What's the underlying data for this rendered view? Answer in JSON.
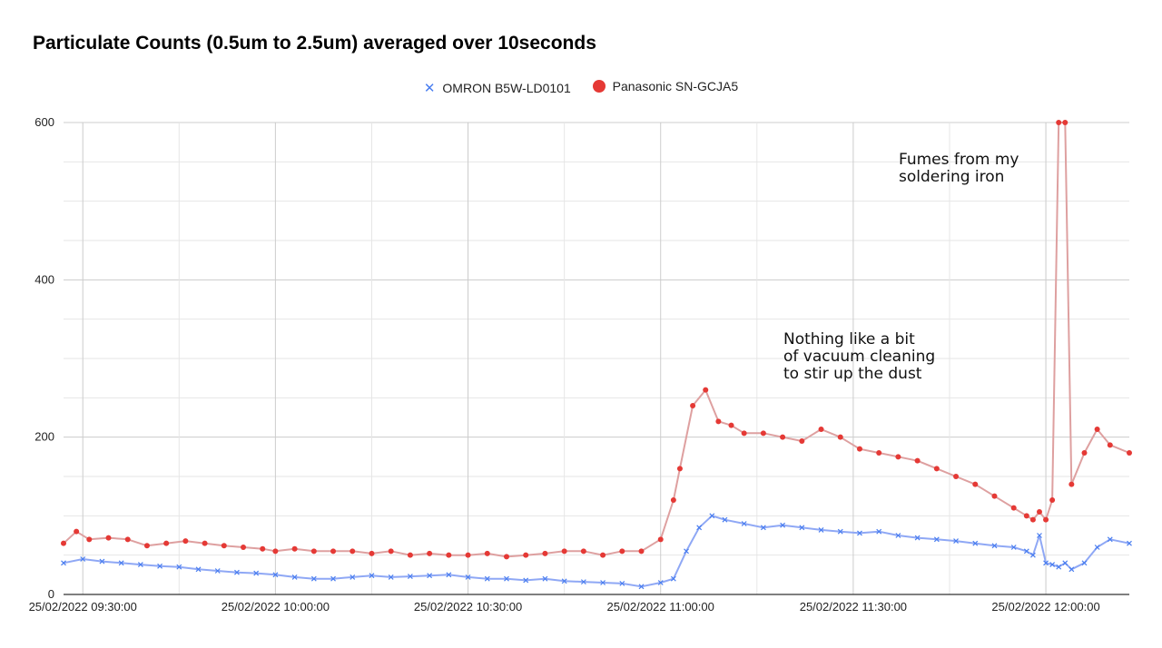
{
  "chart_data": {
    "type": "scatter",
    "title": "Particulate Counts (0.5um to 2.5um) averaged over 10seconds",
    "x_ticks": [
      "25/02/2022 09:30:00",
      "25/02/2022 10:00:00",
      "25/02/2022 10:30:00",
      "25/02/2022 11:00:00",
      "25/02/2022 11:30:00",
      "25/02/2022 12:00:00"
    ],
    "y_ticks": [
      "0",
      "200",
      "400",
      "600"
    ],
    "xlim": [
      "25/02/2022 09:27:00",
      "25/02/2022 12:13:00"
    ],
    "ylim": [
      0,
      600
    ],
    "grid": true,
    "legend_position": "top",
    "series": [
      {
        "name": "OMRON B5W-LD0101",
        "marker": "x",
        "color": "#4a7ef0",
        "trendline_color": "#8fa8f5",
        "x": [
          "09:27",
          "09:30",
          "09:33",
          "09:36",
          "09:39",
          "09:42",
          "09:45",
          "09:48",
          "09:51",
          "09:54",
          "09:57",
          "10:00",
          "10:03",
          "10:06",
          "10:09",
          "10:12",
          "10:15",
          "10:18",
          "10:21",
          "10:24",
          "10:27",
          "10:30",
          "10:33",
          "10:36",
          "10:39",
          "10:42",
          "10:45",
          "10:48",
          "10:51",
          "10:54",
          "10:57",
          "11:00",
          "11:02",
          "11:04",
          "11:06",
          "11:08",
          "11:10",
          "11:13",
          "11:16",
          "11:19",
          "11:22",
          "11:25",
          "11:28",
          "11:31",
          "11:34",
          "11:37",
          "11:40",
          "11:43",
          "11:46",
          "11:49",
          "11:52",
          "11:55",
          "11:57",
          "11:58",
          "11:59",
          "12:00",
          "12:01",
          "12:02",
          "12:03",
          "12:04",
          "12:06",
          "12:08",
          "12:10",
          "12:13"
        ],
        "y": [
          40,
          45,
          42,
          40,
          38,
          36,
          35,
          32,
          30,
          28,
          27,
          25,
          22,
          20,
          20,
          22,
          24,
          22,
          23,
          24,
          25,
          22,
          20,
          20,
          18,
          20,
          17,
          16,
          15,
          14,
          10,
          15,
          20,
          55,
          85,
          100,
          95,
          90,
          85,
          88,
          85,
          82,
          80,
          78,
          80,
          75,
          72,
          70,
          68,
          65,
          62,
          60,
          55,
          50,
          75,
          40,
          38,
          35,
          40,
          32,
          40,
          60,
          70,
          65
        ]
      },
      {
        "name": "Panasonic SN-GCJA5",
        "marker": "circle",
        "color": "#e53935",
        "trendline_color": "#dea0a0",
        "x": [
          "09:27",
          "09:29",
          "09:31",
          "09:34",
          "09:37",
          "09:40",
          "09:43",
          "09:46",
          "09:49",
          "09:52",
          "09:55",
          "09:58",
          "10:00",
          "10:03",
          "10:06",
          "10:09",
          "10:12",
          "10:15",
          "10:18",
          "10:21",
          "10:24",
          "10:27",
          "10:30",
          "10:33",
          "10:36",
          "10:39",
          "10:42",
          "10:45",
          "10:48",
          "10:51",
          "10:54",
          "10:57",
          "11:00",
          "11:02",
          "11:03",
          "11:05",
          "11:07",
          "11:09",
          "11:11",
          "11:13",
          "11:16",
          "11:19",
          "11:22",
          "11:25",
          "11:28",
          "11:31",
          "11:34",
          "11:37",
          "11:40",
          "11:43",
          "11:46",
          "11:49",
          "11:52",
          "11:55",
          "11:57",
          "11:58",
          "11:59",
          "12:00",
          "12:01",
          "12:02",
          "12:03",
          "12:04",
          "12:06",
          "12:08",
          "12:10",
          "12:13"
        ],
        "y": [
          65,
          80,
          70,
          72,
          70,
          62,
          65,
          68,
          65,
          62,
          60,
          58,
          55,
          58,
          55,
          55,
          55,
          52,
          55,
          50,
          52,
          50,
          50,
          52,
          48,
          50,
          52,
          55,
          55,
          50,
          55,
          55,
          70,
          120,
          160,
          240,
          260,
          220,
          215,
          205,
          205,
          200,
          195,
          210,
          200,
          185,
          180,
          175,
          170,
          160,
          150,
          140,
          125,
          110,
          100,
          95,
          105,
          95,
          120,
          600,
          600,
          140,
          180,
          210,
          190,
          180
        ]
      }
    ],
    "annotations": [
      {
        "lines": [
          "Fumes from my",
          "soldering iron"
        ]
      },
      {
        "lines": [
          "Nothing like a bit",
          "of vacuum cleaning",
          "to stir up the dust"
        ]
      }
    ]
  },
  "legend": {
    "items": [
      {
        "label": "OMRON B5W-LD0101"
      },
      {
        "label": "Panasonic SN-GCJA5"
      }
    ]
  }
}
